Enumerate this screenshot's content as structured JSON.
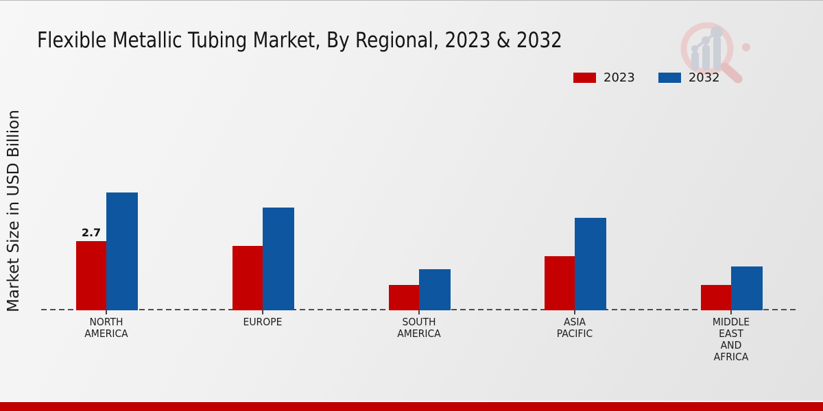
{
  "page": {
    "background_top": "#f7f7f7",
    "background_bottom": "#e2e2e2",
    "footer_bar_color": "#c00000"
  },
  "chart_data": {
    "type": "bar",
    "title": "Flexible Metallic Tubing Market, By Regional, 2023 & 2032",
    "ylabel": "Market Size in USD Billion",
    "xlabel": "",
    "categories": [
      "NORTH AMERICA",
      "EUROPE",
      "SOUTH AMERICA",
      "ASIA PACIFIC",
      "MIDDLE EAST AND AFRICA"
    ],
    "category_label_lines": [
      [
        "NORTH",
        "AMERICA"
      ],
      [
        "EUROPE"
      ],
      [
        "SOUTH",
        "AMERICA"
      ],
      [
        "ASIA",
        "PACIFIC"
      ],
      [
        "MIDDLE",
        "EAST",
        "AND",
        "AFRICA"
      ]
    ],
    "series": [
      {
        "name": "2023",
        "color": "#c40000",
        "values": [
          2.7,
          2.5,
          1.0,
          2.1,
          1.0
        ],
        "labels": [
          "2.7",
          "",
          "",
          "",
          ""
        ]
      },
      {
        "name": "2032",
        "color": "#0f56a0",
        "values": [
          4.6,
          4.0,
          1.6,
          3.6,
          1.7
        ],
        "labels": [
          "",
          "",
          "",
          "",
          ""
        ]
      }
    ],
    "ylim": [
      0,
      5
    ],
    "grid": false,
    "legend_position": "top-right",
    "baseline_style": "dashed"
  }
}
